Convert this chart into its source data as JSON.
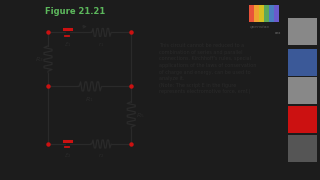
{
  "title": "Figure 21.21",
  "title_color": "#5cb85c",
  "bg_dark": "#1c1c1c",
  "bg_white": "#f8f8f5",
  "text_color": "#2a2a2a",
  "red_color": "#cc1111",
  "wire_color": "#2a2a2a",
  "body_text": "This circuit cannot be reduced to a\ncombination of series and parallel\nconnections. Kirchhoff's rules, special\napplications of the laws of conservation\nof charge and energy, can be used to\nanalyze it.\n(Note: The script Ε in the figure\nrepresents electromotive force, emf.)",
  "openstax_logo_colors": [
    "#e8523a",
    "#e8523a",
    "#f0a030",
    "#5ba85a",
    "#4a7fc0",
    "#6a5acd"
  ],
  "social_colors": [
    "#888888",
    "#3b5998",
    "#888888",
    "#cc1111",
    "#555555"
  ]
}
